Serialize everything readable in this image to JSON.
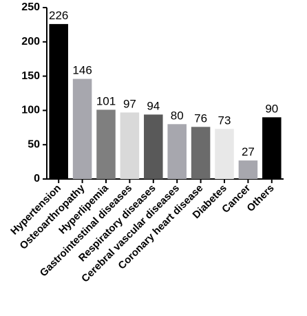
{
  "chart_data": {
    "type": "bar",
    "categories": [
      "Hypertension",
      "Osteoarthropathy",
      "Hyperlipemia",
      "Gastrointestinal diseases",
      "Respiratory diseases",
      "Cerebral vascular diseases",
      "Coronary heart disease",
      "Diabetes",
      "Cancer",
      "Others"
    ],
    "values": [
      226,
      146,
      101,
      97,
      94,
      80,
      76,
      73,
      27,
      90
    ],
    "colors": [
      "#000000",
      "#a7a7ae",
      "#7f7f7f",
      "#d9d9d9",
      "#595959",
      "#a7a7ae",
      "#6b6b6b",
      "#e8e8e8",
      "#a7a7ae",
      "#000000"
    ],
    "ylim": [
      0,
      250
    ],
    "yticks": [
      0,
      50,
      100,
      150,
      200,
      250
    ],
    "grid": false
  }
}
